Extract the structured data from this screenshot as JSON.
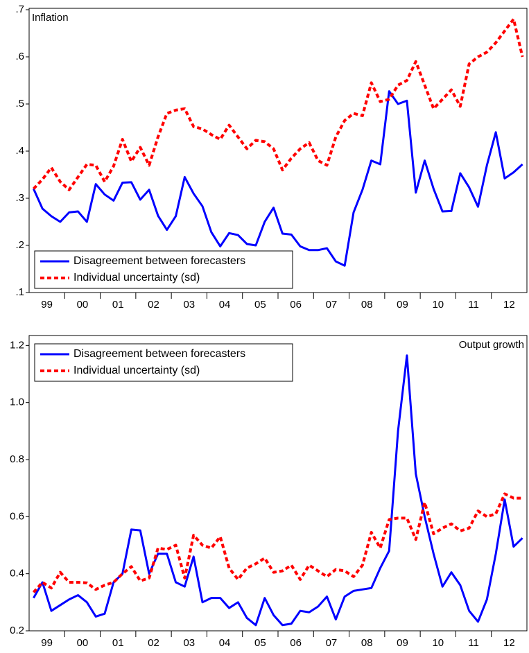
{
  "chart_data": [
    {
      "type": "line",
      "title": "Inflation",
      "title_corner": "upper left",
      "legend": "lower left",
      "x": [
        1999.125,
        1999.375,
        1999.625,
        1999.875,
        2000.125,
        2000.375,
        2000.625,
        2000.875,
        2001.125,
        2001.375,
        2001.625,
        2001.875,
        2002.125,
        2002.375,
        2002.625,
        2002.875,
        2003.125,
        2003.375,
        2003.625,
        2003.875,
        2004.125,
        2004.375,
        2004.625,
        2004.875,
        2005.125,
        2005.375,
        2005.625,
        2005.875,
        2006.125,
        2006.375,
        2006.625,
        2006.875,
        2007.125,
        2007.375,
        2007.625,
        2007.875,
        2008.125,
        2008.375,
        2008.625,
        2008.875,
        2009.125,
        2009.375,
        2009.625,
        2009.875,
        2010.125,
        2010.375,
        2010.625,
        2010.875,
        2011.125,
        2011.375,
        2011.625,
        2011.875,
        2012.125,
        2012.375,
        2012.625,
        2012.875
      ],
      "xlim": [
        1999,
        2013
      ],
      "xticks": [
        {
          "value": 1999.5,
          "label": "99"
        },
        {
          "value": 2000.5,
          "label": "00"
        },
        {
          "value": 2001.5,
          "label": "01"
        },
        {
          "value": 2002.5,
          "label": "02"
        },
        {
          "value": 2003.5,
          "label": "03"
        },
        {
          "value": 2004.5,
          "label": "04"
        },
        {
          "value": 2005.5,
          "label": "05"
        },
        {
          "value": 2006.5,
          "label": "06"
        },
        {
          "value": 2007.5,
          "label": "07"
        },
        {
          "value": 2008.5,
          "label": "08"
        },
        {
          "value": 2009.5,
          "label": "09"
        },
        {
          "value": 2010.5,
          "label": "10"
        },
        {
          "value": 2011.5,
          "label": "11"
        },
        {
          "value": 2012.5,
          "label": "12"
        }
      ],
      "ylim": [
        0.1,
        0.7
      ],
      "yticks": [
        {
          "value": 0.1,
          "label": ".1"
        },
        {
          "value": 0.2,
          "label": ".2"
        },
        {
          "value": 0.3,
          "label": ".3"
        },
        {
          "value": 0.4,
          "label": ".4"
        },
        {
          "value": 0.5,
          "label": ".5"
        },
        {
          "value": 0.6,
          "label": ".6"
        },
        {
          "value": 0.7,
          "label": ".7"
        }
      ],
      "series": [
        {
          "name": "Disagreement between forecasters",
          "color": "#0000ff",
          "dashed": false,
          "values": [
            0.32,
            0.278,
            0.262,
            0.25,
            0.27,
            0.272,
            0.25,
            0.33,
            0.308,
            0.295,
            0.333,
            0.334,
            0.297,
            0.318,
            0.263,
            0.233,
            0.262,
            0.345,
            0.31,
            0.283,
            0.228,
            0.198,
            0.226,
            0.222,
            0.203,
            0.2,
            0.25,
            0.28,
            0.225,
            0.223,
            0.198,
            0.19,
            0.19,
            0.194,
            0.166,
            0.157,
            0.27,
            0.318,
            0.38,
            0.372,
            0.527,
            0.5,
            0.507,
            0.312,
            0.38,
            0.32,
            0.272,
            0.273,
            0.353,
            0.323,
            0.282,
            0.37,
            0.44,
            0.342,
            0.355,
            0.372
          ]
        },
        {
          "name": "Individual uncertainty (sd)",
          "color": "#ff0000",
          "dashed": true,
          "values": [
            0.32,
            0.34,
            0.365,
            0.335,
            0.318,
            0.345,
            0.372,
            0.37,
            0.335,
            0.368,
            0.425,
            0.378,
            0.408,
            0.37,
            0.43,
            0.48,
            0.487,
            0.49,
            0.452,
            0.447,
            0.435,
            0.425,
            0.455,
            0.43,
            0.405,
            0.423,
            0.42,
            0.405,
            0.36,
            0.385,
            0.405,
            0.418,
            0.38,
            0.37,
            0.43,
            0.465,
            0.48,
            0.475,
            0.545,
            0.505,
            0.51,
            0.54,
            0.55,
            0.59,
            0.54,
            0.49,
            0.51,
            0.53,
            0.495,
            0.585,
            0.6,
            0.61,
            0.63,
            0.655,
            0.68,
            0.6
          ]
        }
      ]
    },
    {
      "type": "line",
      "title": "Output growth",
      "title_corner": "upper right",
      "legend": "upper left",
      "x": [
        1999.125,
        1999.375,
        1999.625,
        1999.875,
        2000.125,
        2000.375,
        2000.625,
        2000.875,
        2001.125,
        2001.375,
        2001.625,
        2001.875,
        2002.125,
        2002.375,
        2002.625,
        2002.875,
        2003.125,
        2003.375,
        2003.625,
        2003.875,
        2004.125,
        2004.375,
        2004.625,
        2004.875,
        2005.125,
        2005.375,
        2005.625,
        2005.875,
        2006.125,
        2006.375,
        2006.625,
        2006.875,
        2007.125,
        2007.375,
        2007.625,
        2007.875,
        2008.125,
        2008.375,
        2008.625,
        2008.875,
        2009.125,
        2009.375,
        2009.625,
        2009.875,
        2010.125,
        2010.375,
        2010.625,
        2010.875,
        2011.125,
        2011.375,
        2011.625,
        2011.875,
        2012.125,
        2012.375,
        2012.625,
        2012.875
      ],
      "xlim": [
        1999,
        2013
      ],
      "xticks": [
        {
          "value": 1999.5,
          "label": "99"
        },
        {
          "value": 2000.5,
          "label": "00"
        },
        {
          "value": 2001.5,
          "label": "01"
        },
        {
          "value": 2002.5,
          "label": "02"
        },
        {
          "value": 2003.5,
          "label": "03"
        },
        {
          "value": 2004.5,
          "label": "04"
        },
        {
          "value": 2005.5,
          "label": "05"
        },
        {
          "value": 2006.5,
          "label": "06"
        },
        {
          "value": 2007.5,
          "label": "07"
        },
        {
          "value": 2008.5,
          "label": "08"
        },
        {
          "value": 2009.5,
          "label": "09"
        },
        {
          "value": 2010.5,
          "label": "10"
        },
        {
          "value": 2011.5,
          "label": "11"
        },
        {
          "value": 2012.5,
          "label": "12"
        }
      ],
      "ylim": [
        0.2,
        1.23
      ],
      "yticks": [
        0.2,
        0.4,
        0.6,
        0.8,
        {
          "value": 1.0,
          "label": "1.0"
        },
        1.2
      ],
      "series": [
        {
          "name": "Disagreement between forecasters",
          "color": "#0000ff",
          "dashed": false,
          "values": [
            0.315,
            0.37,
            0.27,
            0.29,
            0.31,
            0.325,
            0.3,
            0.25,
            0.26,
            0.37,
            0.4,
            0.555,
            0.552,
            0.4,
            0.47,
            0.47,
            0.37,
            0.355,
            0.46,
            0.3,
            0.315,
            0.315,
            0.28,
            0.3,
            0.245,
            0.22,
            0.315,
            0.255,
            0.22,
            0.225,
            0.27,
            0.265,
            0.285,
            0.32,
            0.24,
            0.32,
            0.34,
            0.345,
            0.35,
            0.42,
            0.48,
            0.9,
            1.165,
            0.75,
            0.6,
            0.47,
            0.355,
            0.405,
            0.36,
            0.27,
            0.232,
            0.31,
            0.47,
            0.66,
            0.495,
            0.525
          ]
        },
        {
          "name": "Individual uncertainty (sd)",
          "color": "#ff0000",
          "dashed": true,
          "values": [
            0.335,
            0.37,
            0.35,
            0.405,
            0.37,
            0.37,
            0.368,
            0.345,
            0.36,
            0.37,
            0.4,
            0.425,
            0.375,
            0.385,
            0.49,
            0.485,
            0.5,
            0.385,
            0.535,
            0.5,
            0.49,
            0.53,
            0.42,
            0.38,
            0.42,
            0.435,
            0.455,
            0.405,
            0.41,
            0.43,
            0.38,
            0.43,
            0.41,
            0.39,
            0.415,
            0.41,
            0.39,
            0.43,
            0.545,
            0.49,
            0.59,
            0.595,
            0.595,
            0.52,
            0.65,
            0.54,
            0.56,
            0.575,
            0.55,
            0.56,
            0.62,
            0.6,
            0.61,
            0.68,
            0.665,
            0.665
          ]
        }
      ]
    }
  ]
}
